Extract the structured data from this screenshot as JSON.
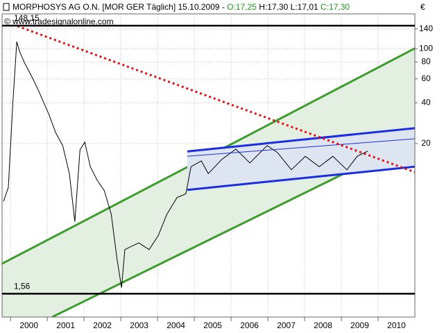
{
  "chart_data": {
    "type": "line",
    "title": "MORPHOSYS AG O.N. [MOR GER  Täglich] 15.10.2009 -",
    "ohlc_open": "O:17,25",
    "ohlc_high_low": "H:17,30 L:17,01",
    "ohlc_close": "C:17,30",
    "currency": "€",
    "watermark": "© www.tradesignalonline.com",
    "log_scale": true,
    "grid": true,
    "xlim": [
      1999.77,
      2011.0
    ],
    "ylim": [
      1.05,
      181
    ],
    "yticks": [
      20,
      40,
      60,
      80,
      100,
      140
    ],
    "xticks": [
      2000,
      2001,
      2002,
      2003,
      2004,
      2005,
      2006,
      2007,
      2008,
      2009,
      2010
    ],
    "series": [
      {
        "color": "#000000",
        "x": [
          1999.81,
          1999.94,
          2000.06,
          2000.17,
          2000.25,
          2000.38,
          2000.57,
          2000.75,
          2001.04,
          2001.23,
          2001.42,
          2001.6,
          2001.75,
          2001.89,
          2002.02,
          2002.17,
          2002.36,
          2002.55,
          2002.74,
          2002.89,
          2003.02,
          2003.11,
          2003.3,
          2003.49,
          2003.77,
          2004.02,
          2004.25,
          2004.53,
          2004.77,
          2004.91,
          2005.19,
          2005.38,
          2005.75,
          2006.13,
          2006.51,
          2006.98,
          2007.26,
          2007.64,
          2008.02,
          2008.4,
          2008.77,
          2009.15,
          2009.43,
          2009.72
        ],
        "values": [
          7.5,
          9.5,
          39,
          113,
          95,
          79,
          63,
          50,
          33,
          24,
          19.3,
          12.0,
          5.3,
          18,
          20.5,
          13.5,
          10.7,
          9,
          6.0,
          2.9,
          1.73,
          3.3,
          3.5,
          3.7,
          3.3,
          4.2,
          6.0,
          8.0,
          8.5,
          13.5,
          14.9,
          12.0,
          15.3,
          18.2,
          14.4,
          19.3,
          17.2,
          12.8,
          16.1,
          13.5,
          16.1,
          12.8,
          16.1,
          17.6
        ]
      }
    ],
    "channels": [
      {
        "fill": "#e3efe0",
        "color": "#3c9c2c",
        "width": 3,
        "upper": {
          "x": [
            1999.77,
            2011.0
          ],
          "values": [
            2.6,
            100.8
          ]
        },
        "lower": {
          "x": [
            2001.13,
            2011.0
          ],
          "values": [
            1.05,
            21.7
          ]
        }
      },
      {
        "fill": "#dde5f0",
        "color": "#1a2ee0",
        "width": 3,
        "upper": {
          "x": [
            2004.81,
            2011.0
          ],
          "values": [
            17.5,
            26.0
          ]
        },
        "lower": {
          "x": [
            2004.81,
            2011.0
          ],
          "values": [
            9.1,
            13.5
          ]
        }
      }
    ],
    "lines": [
      {
        "color": "#1a2ee0",
        "width": 1,
        "dash": "none",
        "x": [
          2004.81,
          2011.0
        ],
        "values": [
          16.1,
          21.7
        ]
      },
      {
        "color": "#e01010",
        "width": 3,
        "dash": "3 4",
        "x": [
          2000.19,
          2011.0
        ],
        "values": [
          147,
          12.3
        ]
      }
    ],
    "hlines": [
      {
        "value": 148.15,
        "label": "148,15"
      },
      {
        "value": 1.56,
        "label": "1,56"
      }
    ]
  }
}
